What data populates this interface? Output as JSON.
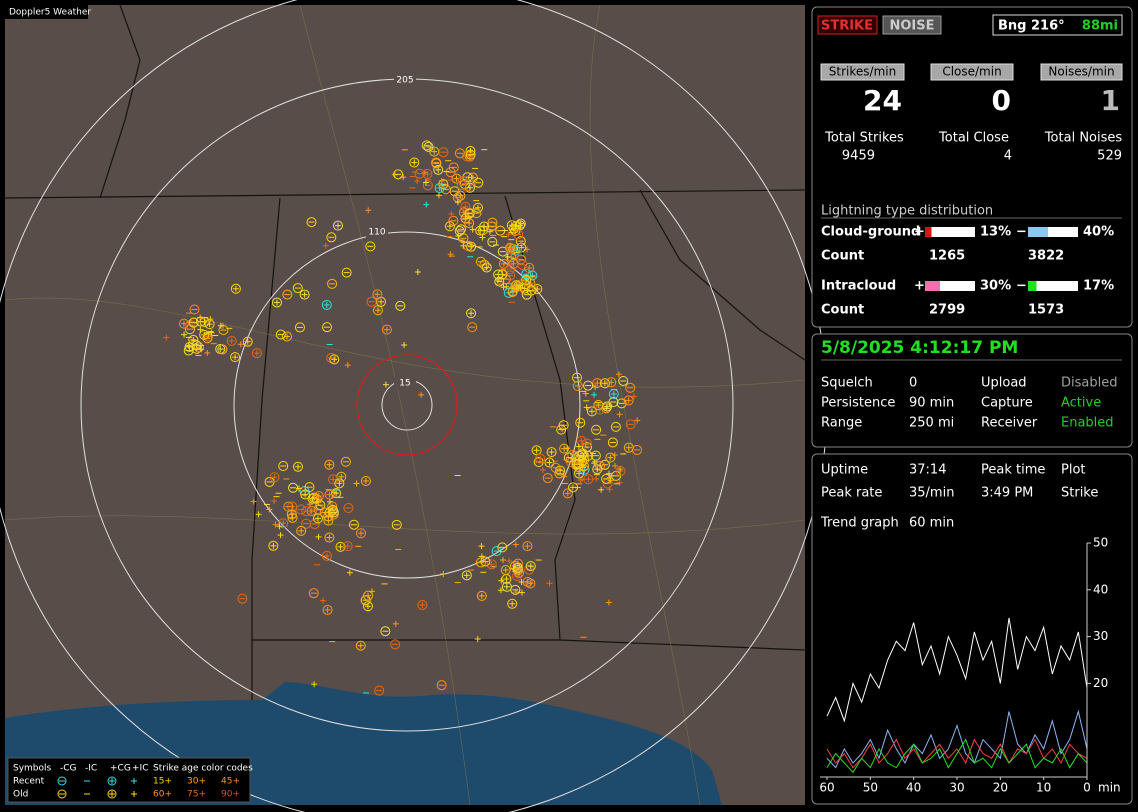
{
  "map": {
    "title": "Doppler5 Weather",
    "rings": [
      "205",
      "110",
      "15"
    ],
    "legend": {
      "header": [
        "Symbols",
        "-CG",
        "-IC",
        "+CG",
        "+IC",
        "Strike age color codes"
      ],
      "rows": [
        {
          "label": "Recent",
          "ages": [
            "15+",
            "30+",
            "45+"
          ]
        },
        {
          "label": "Old",
          "ages": [
            "60+",
            "75+",
            "90+"
          ]
        }
      ]
    }
  },
  "controls": {
    "strike": "STRIKE",
    "noise": "NOISE",
    "bearing": "Bng 216°",
    "distance": "88mi"
  },
  "rates": [
    {
      "label": "Strikes/min",
      "value": 24,
      "total_label": "Total Strikes",
      "total": 9459
    },
    {
      "label": "Close/min",
      "value": 0,
      "total_label": "Total Close",
      "total": 4
    },
    {
      "label": "Noises/min",
      "value": 1,
      "total_label": "Total Noises",
      "total": 529
    }
  ],
  "distribution": {
    "title": "Lightning type distribution",
    "count_label": "Count",
    "rows": [
      {
        "label": "Cloud-ground",
        "pos_sign": "+",
        "neg_sign": "−",
        "pos": {
          "value": 13,
          "label": "13%"
        },
        "neg": {
          "value": 40,
          "label": "40%"
        },
        "pos_count": 1265,
        "neg_count": 3822,
        "pos_color": "#e01010",
        "neg_color": "#8cc8f0"
      },
      {
        "label": "Intracloud",
        "pos_sign": "+",
        "neg_sign": "−",
        "pos": {
          "value": 30,
          "label": "30%"
        },
        "neg": {
          "value": 17,
          "label": "17%"
        },
        "pos_count": 2799,
        "neg_count": 1573,
        "pos_color": "#f070b0",
        "neg_color": "#20e020"
      }
    ]
  },
  "status": {
    "datetime": "5/8/2025 4:12:17 PM",
    "rows": [
      [
        {
          "text": "Squelch"
        },
        {
          "text": "0"
        },
        {
          "text": "Upload"
        },
        {
          "text": "Disabled",
          "color": "#a0a0a0"
        }
      ],
      [
        {
          "text": "Persistence"
        },
        {
          "text": "90 min"
        },
        {
          "text": "Capture"
        },
        {
          "text": "Active",
          "color": "#20d020"
        }
      ],
      [
        {
          "text": "Range"
        },
        {
          "text": "250 mi"
        },
        {
          "text": "Receiver"
        },
        {
          "text": "Enabled",
          "color": "#20d020"
        }
      ]
    ]
  },
  "stats": {
    "rows": [
      [
        "Uptime",
        "37:14",
        "Peak time",
        "Plot"
      ],
      [
        "Peak rate",
        "35/min",
        "3:49 PM",
        "Strike"
      ],
      [
        "Trend graph",
        "60 min"
      ]
    ]
  },
  "chart_data": {
    "type": "line",
    "x_unit": "min",
    "x": [
      60,
      58,
      56,
      54,
      52,
      50,
      48,
      46,
      44,
      42,
      40,
      38,
      36,
      34,
      32,
      30,
      28,
      26,
      24,
      22,
      20,
      18,
      16,
      14,
      12,
      10,
      8,
      6,
      4,
      2,
      0
    ],
    "xlim": [
      60,
      0
    ],
    "xticks": [
      60,
      50,
      40,
      30,
      20,
      10,
      0
    ],
    "ylim": [
      0,
      50
    ],
    "yticks": [
      20,
      30,
      40,
      50
    ],
    "series": [
      {
        "color": "#ffffff",
        "values": [
          13,
          17,
          12,
          20,
          16,
          22,
          19,
          25,
          29,
          27,
          33,
          24,
          28,
          22,
          30,
          26,
          21,
          31,
          25,
          29,
          20,
          34,
          23,
          30,
          27,
          32,
          22,
          28,
          25,
          31,
          19
        ]
      },
      {
        "color": "#8cb4f0",
        "values": [
          4,
          2,
          6,
          3,
          5,
          8,
          4,
          10,
          6,
          3,
          7,
          5,
          9,
          4,
          6,
          11,
          5,
          3,
          8,
          6,
          4,
          14,
          7,
          5,
          9,
          6,
          12,
          5,
          8,
          14,
          6
        ]
      },
      {
        "color": "#f04040",
        "values": [
          6,
          3,
          5,
          2,
          4,
          7,
          3,
          5,
          8,
          4,
          6,
          3,
          5,
          7,
          4,
          6,
          3,
          8,
          5,
          4,
          7,
          3,
          6,
          5,
          8,
          4,
          6,
          3,
          7,
          5,
          4
        ]
      },
      {
        "color": "#20e020",
        "values": [
          2,
          5,
          3,
          1,
          4,
          2,
          6,
          3,
          2,
          5,
          7,
          3,
          4,
          6,
          2,
          5,
          8,
          3,
          4,
          2,
          6,
          3,
          5,
          7,
          2,
          4,
          3,
          6,
          2,
          5,
          3
        ]
      }
    ]
  }
}
